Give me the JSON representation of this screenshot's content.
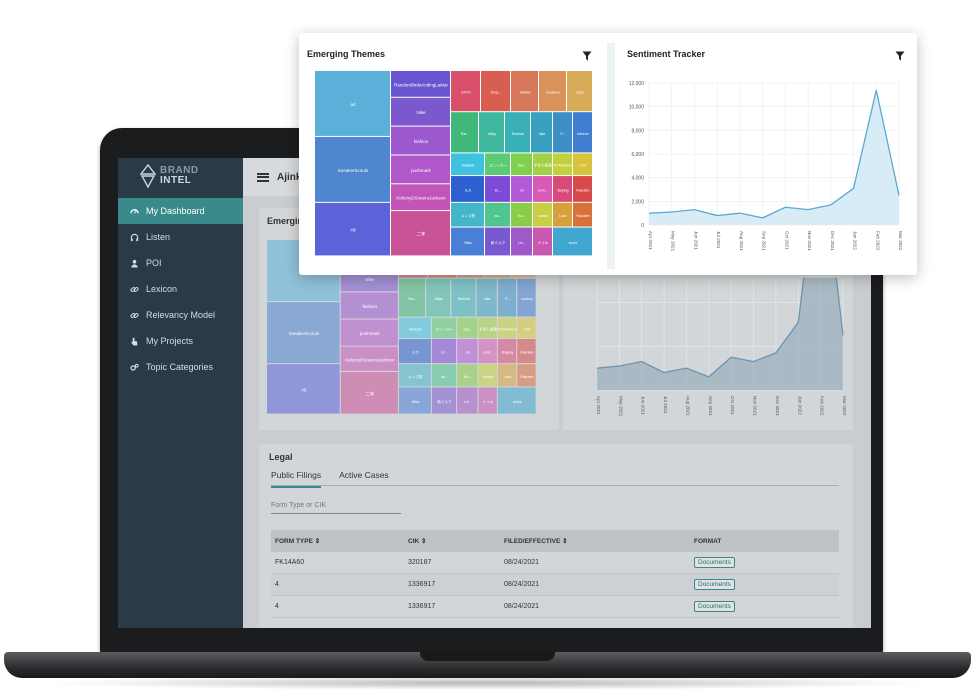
{
  "brand": {
    "line1": "BRAND",
    "line2": "INTEL"
  },
  "sidebar": {
    "items": [
      {
        "label": "My Dashboard",
        "icon": "dashboard-icon"
      },
      {
        "label": "Listen",
        "icon": "headphones-icon"
      },
      {
        "label": "POI",
        "icon": "person-icon"
      },
      {
        "label": "Lexicon",
        "icon": "link-icon"
      },
      {
        "label": "Relevancy Model",
        "icon": "link-icon"
      },
      {
        "label": "My Projects",
        "icon": "pointer-icon"
      },
      {
        "label": "Topic Categories",
        "icon": "gears-icon"
      }
    ]
  },
  "topbar": {
    "user": "Ajink"
  },
  "emerging": {
    "title": "Emerging Themes",
    "cells": [
      "ad",
      "SneakerScouts",
      "All",
      "RandomBirdsAndingLaMar",
      "Nike",
      "fashion",
      "poshmark",
      "KeltonyDSneeruJackson",
      "二年",
      "CNYC",
      "shop...",
      "adidas",
      "sneakers",
      "style",
      "Rai...",
      "eBay",
      "Reebok",
      "nike",
      "P...",
      "lolseno",
      "Maikadl",
      "スニーカー",
      "Swi...",
      "手形と藤森",
      "NYMelbeca",
      "LOA",
      "ルカ",
      "El...",
      "sn",
      "prot...",
      "Buying",
      "Rakuten",
      "メンズ型",
      "ao...",
      "Bo...",
      "scalar",
      "Luke",
      "Rakuten",
      "Nika",
      "新ミルク",
      "Lin...",
      "ナイキ",
      "score"
    ]
  },
  "sentiment": {
    "title": "Sentiment Tracker",
    "y_ticks": [
      "0",
      "2,000",
      "4,000",
      "6,000",
      "8,000",
      "10,000",
      "12,000"
    ],
    "x_ticks": [
      "Apr 2021",
      "May 2021",
      "Jun 2021",
      "Jul 2021",
      "Aug 2021",
      "Sep 2021",
      "Oct 2021",
      "Nov 2021",
      "Dec 2021",
      "Jan 2022",
      "Feb 2022",
      "Mar 2022"
    ]
  },
  "chart_data": {
    "type": "area",
    "title": "Sentiment Tracker",
    "x": [
      "Apr 2021",
      "May 2021",
      "Jun 2021",
      "Jul 2021",
      "Aug 2021",
      "Sep 2021",
      "Oct 2021",
      "Nov 2021",
      "Dec 2021",
      "Jan 2022",
      "Feb 2022",
      "Mar 2022"
    ],
    "values": [
      1000,
      1100,
      1300,
      800,
      1000,
      600,
      1500,
      1300,
      1700,
      3100,
      11400,
      2500
    ],
    "ylim": [
      0,
      12000
    ],
    "grid": true,
    "color": "#5aa9d6"
  },
  "legal": {
    "title": "Legal",
    "tabs": [
      "Public Filings",
      "Active Cases"
    ],
    "placeholder": "Form Type or CIK",
    "columns": [
      "FORM TYPE ⇕",
      "CIK ⇕",
      "FILED/EFFECTIVE ⇕",
      "FORMAT"
    ],
    "rows": [
      [
        "FK14A60",
        "320187",
        "08/24/2021",
        "Documents"
      ],
      [
        "4",
        "1336917",
        "08/24/2021",
        "Documents"
      ],
      [
        "4",
        "1336917",
        "08/24/2021",
        "Documents"
      ]
    ]
  },
  "colors": {
    "accent": "#3a8a8c",
    "sidebar": "#2a3a46"
  }
}
